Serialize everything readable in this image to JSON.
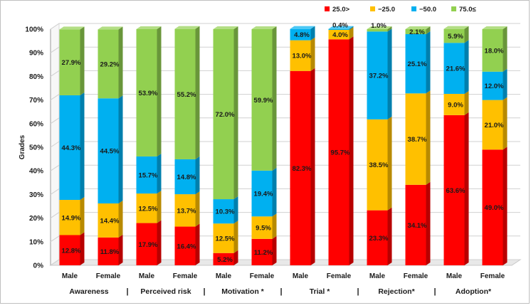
{
  "chart_data": {
    "type": "bar",
    "stacked": true,
    "percent_stacked": true,
    "title": "",
    "xlabel": "",
    "ylabel": "Grades",
    "ylim": [
      0,
      100
    ],
    "y_ticks": [
      "0%",
      "10%",
      "20%",
      "30%",
      "40%",
      "50%",
      "60%",
      "70%",
      "80%",
      "90%",
      "100%"
    ],
    "legend_position": "top-right",
    "categories": [
      "Male",
      "Female",
      "Male",
      "Female",
      "Male",
      "Female",
      "Male",
      "Female",
      "Male",
      "Female",
      "Male",
      "Female"
    ],
    "groups": [
      "Awareness",
      "Perceived risk",
      "Motivation *",
      "Trial *",
      "Rejection*",
      "Adoption*"
    ],
    "separator": "|",
    "series": [
      {
        "name": "25.0>",
        "color": "#ff0000",
        "values": [
          12.8,
          11.8,
          17.9,
          16.4,
          5.2,
          11.2,
          82.3,
          95.7,
          23.3,
          34.1,
          63.6,
          49.0
        ],
        "labels": [
          "12.8%",
          "11.8%",
          "17.9%",
          "16.4%",
          "5.2%",
          "11.2%",
          "82.3%",
          "95.7%",
          "23.3%",
          "34.1%",
          "63.6%",
          "49.0%"
        ]
      },
      {
        "name": "−25.0",
        "color": "#ffc000",
        "values": [
          14.9,
          14.4,
          12.5,
          13.7,
          12.5,
          9.5,
          13.0,
          4.0,
          38.5,
          38.7,
          9.0,
          21.0
        ],
        "labels": [
          "14.9%",
          "14.4%",
          "12.5%",
          "13.7%",
          "12.5%",
          "9.5%",
          "13.0%",
          "4.0%",
          "38.5%",
          "38.7%",
          "9.0%",
          "21.0%"
        ]
      },
      {
        "name": "−50.0",
        "color": "#00b0f0",
        "values": [
          44.3,
          44.5,
          15.7,
          14.8,
          10.3,
          19.4,
          4.8,
          0.4,
          37.2,
          25.1,
          21.6,
          12.0
        ],
        "labels": [
          "44.3%",
          "44.5%",
          "15.7%",
          "14.8%",
          "10.3%",
          "19.4%",
          "4.8%",
          "0.4%",
          "37.2%",
          "25.1%",
          "21.6%",
          "12.0%"
        ]
      },
      {
        "name": "75.0≤",
        "color": "#92d050",
        "values": [
          27.9,
          29.2,
          53.9,
          55.2,
          72.0,
          59.9,
          0,
          0,
          1.0,
          2.1,
          5.9,
          18.0
        ],
        "labels": [
          "27.9%",
          "29.2%",
          "53.9%",
          "55.2%",
          "72.0%",
          "59.9%",
          "",
          "",
          "1.0%",
          "2.1%",
          "5.9%",
          "18.0%"
        ]
      }
    ]
  }
}
